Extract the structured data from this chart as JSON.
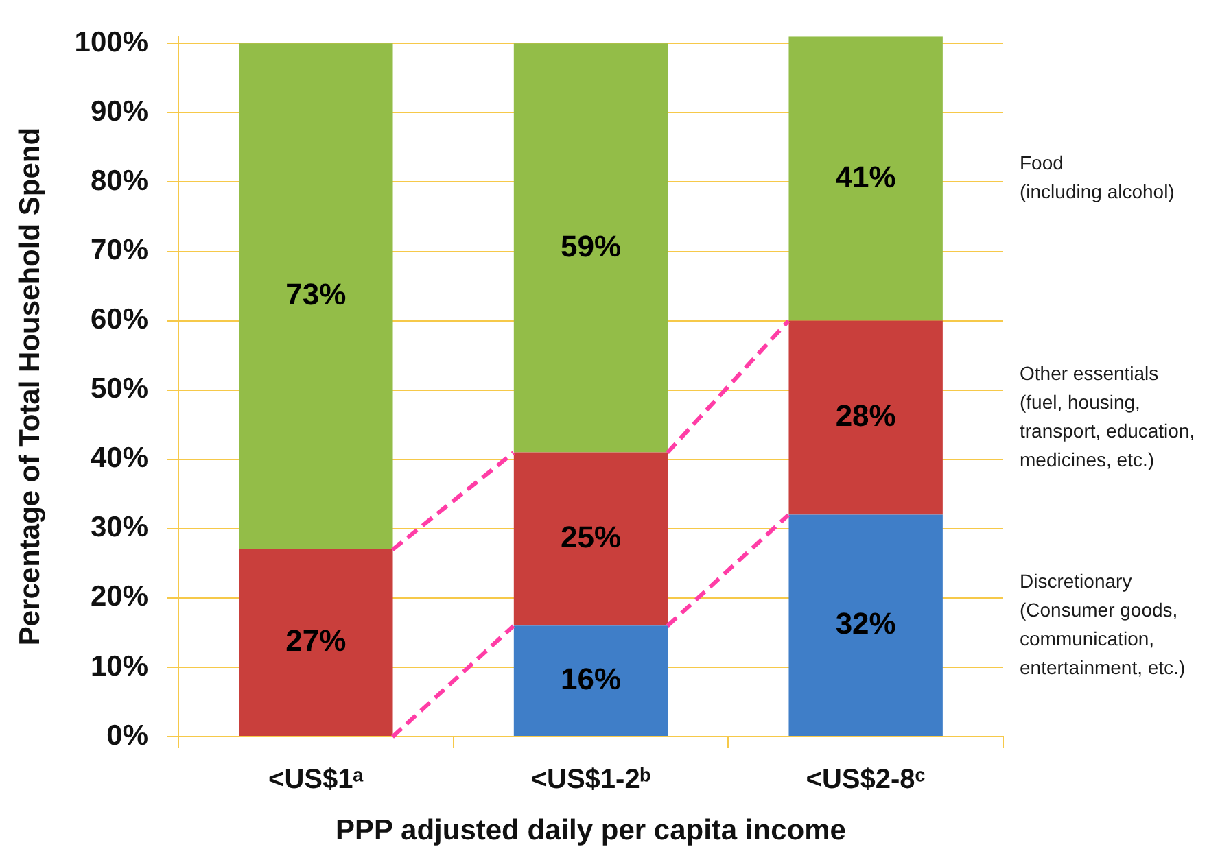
{
  "chart_data": {
    "type": "bar",
    "stacked": true,
    "xlabel": "PPP adjusted daily per capita income",
    "ylabel": "Percentage of Total Household Spend",
    "categories": [
      "<US$1ᵃ",
      "<US$1-2ᵇ",
      "<US$2-8ᶜ"
    ],
    "series": [
      {
        "name": "Discretionary\n(Consumer goods,\ncommunication,\nentertainment, etc.)",
        "color": "#3f7ec8",
        "values": [
          null,
          16,
          32
        ],
        "value_labels": [
          null,
          "16%",
          "32%"
        ]
      },
      {
        "name": "Other essentials\n(fuel, housing,\ntransport, education,\nmedicines, etc.)",
        "color": "#c93f3c",
        "values": [
          27,
          25,
          28
        ],
        "value_labels": [
          "27%",
          "25%",
          "28%"
        ]
      },
      {
        "name": "Food\n(including alcohol)",
        "color": "#93bd48",
        "values": [
          73,
          59,
          41
        ],
        "value_labels": [
          "73%",
          "59%",
          "41%"
        ]
      }
    ],
    "ylim": [
      0,
      101
    ],
    "yticks": [
      {
        "value": 0,
        "label": "0%"
      },
      {
        "value": 10,
        "label": "10%"
      },
      {
        "value": 20,
        "label": "20%"
      },
      {
        "value": 30,
        "label": "30%"
      },
      {
        "value": 40,
        "label": "40%"
      },
      {
        "value": 50,
        "label": "50%"
      },
      {
        "value": 60,
        "label": "60%"
      },
      {
        "value": 70,
        "label": "70%"
      },
      {
        "value": 80,
        "label": "80%"
      },
      {
        "value": 90,
        "label": "90%"
      },
      {
        "value": 100,
        "label": "100%"
      }
    ],
    "grid": "y"
  }
}
